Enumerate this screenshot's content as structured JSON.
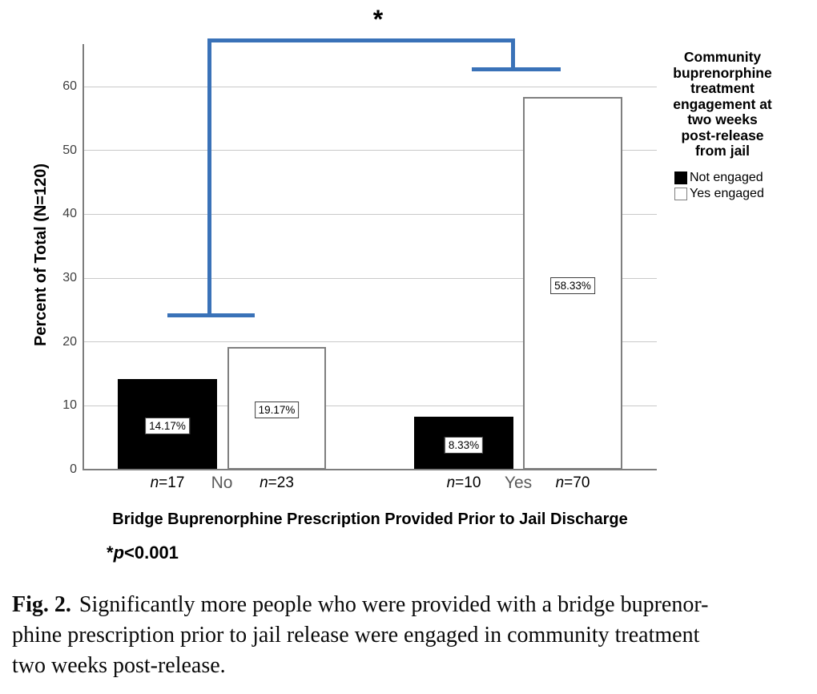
{
  "chart_data": {
    "type": "bar",
    "title": "",
    "xlabel": "Bridge Buprenorphine Prescription Provided Prior to Jail Discharge",
    "ylabel": "Percent of Total (N=120)",
    "ylim": [
      0,
      66.5
    ],
    "yticks": [
      0,
      10,
      20,
      30,
      40,
      50,
      60
    ],
    "grid": "horizontal",
    "legend_position": "right",
    "categories": [
      "No",
      "Yes"
    ],
    "series": [
      {
        "name": "Not engaged",
        "fill": "#000000",
        "values": [
          14.17,
          8.33
        ],
        "n": [
          17,
          10
        ]
      },
      {
        "name": "Yes engaged",
        "fill": "#ffffff",
        "values": [
          19.17,
          58.33
        ],
        "n": [
          23,
          70
        ]
      }
    ],
    "bars": [
      {
        "group": "No",
        "series": "Not engaged",
        "value": 14.17,
        "value_label": "14.17%",
        "n_italic": "n",
        "n_rest": "=17",
        "fill": "black"
      },
      {
        "group": "No",
        "series": "Yes engaged",
        "value": 19.17,
        "value_label": "19.17%",
        "n_italic": "n",
        "n_rest": "=23",
        "fill": "white"
      },
      {
        "group": "Yes",
        "series": "Not engaged",
        "value": 8.33,
        "value_label": "8.33%",
        "n_italic": "n",
        "n_rest": "=10",
        "fill": "black"
      },
      {
        "group": "Yes",
        "series": "Yes engaged",
        "value": 58.33,
        "value_label": "58.33%",
        "n_italic": "n",
        "n_rest": "=70",
        "fill": "white"
      }
    ],
    "significance": {
      "marker": "*",
      "note_star": "*",
      "note_p": "p",
      "note_rest": "<0.001"
    }
  },
  "legend": {
    "title_lines": [
      "Community",
      "buprenorphine",
      "treatment",
      "engagement at",
      "two weeks",
      "post-release",
      "from jail"
    ],
    "items": [
      {
        "label": "Not engaged",
        "swatch": "#000000"
      },
      {
        "label": "Yes engaged",
        "swatch": "#ffffff"
      }
    ]
  },
  "caption": {
    "label": "Fig. 2.",
    "lines": [
      "Significantly more people who were provided with a bridge buprenor-",
      "phine prescription prior to jail release were engaged in community treatment",
      "two weeks post-release."
    ]
  },
  "colors": {
    "bracket_blue": "#3a72b8",
    "gridline": "#c9c9c9",
    "axis": "#7d7d7d",
    "group_label": "#5a5a5a",
    "white_bar_border": "#7f7f7f"
  }
}
